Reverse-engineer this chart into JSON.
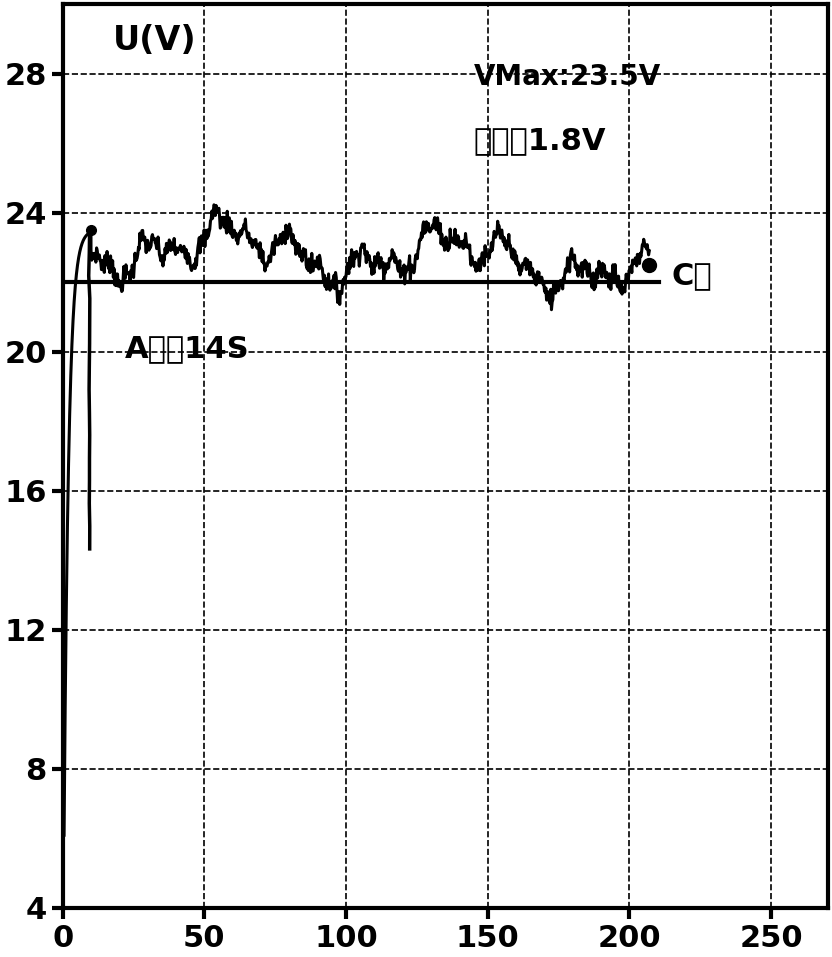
{
  "ylabel": "U(V)",
  "xlim": [
    0,
    270
  ],
  "ylim": [
    4,
    30
  ],
  "yticks": [
    4,
    8,
    12,
    16,
    20,
    24,
    28
  ],
  "ytick_labels": [
    "4",
    "8",
    "12",
    "16",
    "20",
    "24",
    "28"
  ],
  "xticks": [
    0,
    50,
    100,
    150,
    200,
    250
  ],
  "annotation_vmax": "VMax:23.5V",
  "annotation_drop": "跃落：1.8V",
  "annotation_c": "C点",
  "annotation_a": "A点：14S",
  "divider_y": 22.0,
  "curve_end_x": 207,
  "curve_end_y": 22.5,
  "line_color": "#000000",
  "background_color": "#ffffff",
  "font_size_ylabel": 24,
  "font_size_ticks": 22,
  "font_size_annotations": 20,
  "font_size_top_label": 26
}
